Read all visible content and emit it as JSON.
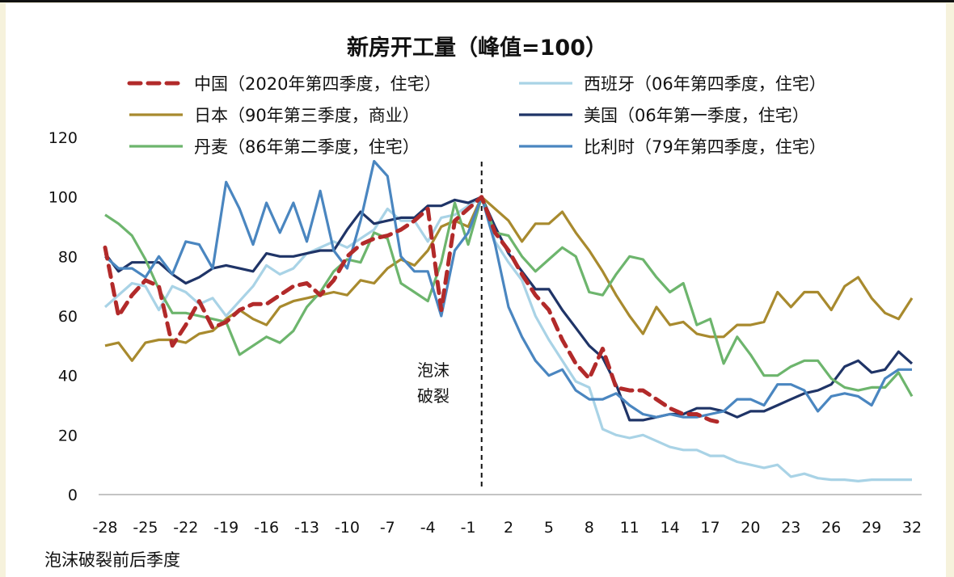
{
  "chart_data": {
    "type": "line",
    "title": "新房开工量（峰值=100）",
    "xlabel": "泡沫破裂前后季度",
    "ylabel": "",
    "xlim": [
      -28,
      32
    ],
    "ylim": [
      0,
      120
    ],
    "yticks": [
      0,
      20,
      40,
      60,
      80,
      100,
      120
    ],
    "xticks": [
      -28,
      -25,
      -22,
      -19,
      -16,
      -13,
      -10,
      -7,
      -4,
      -1,
      2,
      5,
      8,
      11,
      14,
      17,
      20,
      23,
      26,
      29,
      32
    ],
    "grid": false,
    "legend_placement": "top",
    "annotation": {
      "x": 0,
      "lines": [
        "泡沫",
        "破裂"
      ],
      "style": "dashed vertical line"
    },
    "x": [
      -28,
      -27,
      -26,
      -25,
      -24,
      -23,
      -22,
      -21,
      -20,
      -19,
      -18,
      -17,
      -16,
      -15,
      -14,
      -13,
      -12,
      -11,
      -10,
      -9,
      -8,
      -7,
      -6,
      -5,
      -4,
      -3,
      -2,
      -1,
      0,
      1,
      2,
      3,
      4,
      5,
      6,
      7,
      8,
      9,
      10,
      11,
      12,
      13,
      14,
      15,
      16,
      17,
      18,
      19,
      20,
      21,
      22,
      23,
      24,
      25,
      26,
      27,
      28,
      29,
      30,
      31,
      32
    ],
    "series": [
      {
        "name": "中国（2020年第四季度，住宅）",
        "color": "#b22a2a",
        "dash": true,
        "values": [
          83,
          60,
          67,
          72,
          70,
          50,
          57,
          65,
          56,
          58,
          62,
          64,
          64,
          67,
          70,
          71,
          67,
          72,
          80,
          84,
          86,
          87,
          89,
          92,
          96,
          62,
          92,
          96,
          100,
          88,
          82,
          74,
          67,
          62,
          52,
          44,
          39,
          49,
          36,
          35,
          35,
          32,
          29,
          27,
          27,
          25,
          24,
          null,
          null,
          null,
          null,
          null,
          null,
          null,
          null,
          null,
          null,
          null,
          null,
          null,
          null
        ]
      },
      {
        "name": "西班牙（06年第四季度，住宅）",
        "color": "#a9d3e6",
        "dash": false,
        "values": [
          63,
          67,
          71,
          70,
          62,
          70,
          68,
          64,
          66,
          60,
          65,
          70,
          77,
          74,
          76,
          81,
          83,
          85,
          83,
          86,
          89,
          96,
          92,
          92,
          85,
          93,
          94,
          97,
          100,
          85,
          78,
          72,
          60,
          52,
          45,
          38,
          36,
          22,
          20,
          19,
          20,
          18,
          16,
          15,
          15,
          13,
          13,
          11,
          10,
          9,
          10,
          6,
          7,
          5.5,
          5,
          5,
          4.5,
          5,
          5,
          5,
          5
        ]
      },
      {
        "name": "日本（90年第三季度，商业）",
        "color": "#a88a2e",
        "dash": false,
        "values": [
          50,
          51,
          45,
          51,
          52,
          52,
          51,
          54,
          55,
          59,
          62,
          59,
          57,
          63,
          65,
          66,
          67,
          68,
          67,
          72,
          71,
          76,
          79,
          77,
          82,
          90,
          92,
          90,
          100,
          96,
          92,
          85,
          91,
          91,
          95,
          88,
          82,
          75,
          67,
          60,
          54,
          63,
          57,
          58,
          54,
          53,
          53,
          57,
          57,
          58,
          68,
          63,
          68,
          68,
          62,
          70,
          73,
          66,
          61,
          59,
          66
        ]
      },
      {
        "name": "美国（06年第一季度，住宅）",
        "color": "#1f3467",
        "dash": false,
        "values": [
          81,
          75,
          78,
          78,
          78,
          74,
          71,
          73,
          76,
          77,
          76,
          75,
          81,
          80,
          80,
          81,
          82,
          82,
          89,
          95,
          91,
          92,
          93,
          93,
          97,
          97,
          99,
          98,
          100,
          90,
          81,
          75,
          69,
          69,
          62,
          56,
          50,
          46,
          37,
          25,
          25,
          26,
          27,
          27,
          29,
          29,
          28,
          26,
          28,
          28,
          30,
          32,
          34,
          35,
          37,
          43,
          45,
          41,
          42,
          48,
          44
        ]
      },
      {
        "name": "丹麦（86年第二季度，住宅）",
        "color": "#6db56d",
        "dash": false,
        "values": [
          94,
          91,
          87,
          79,
          69,
          61,
          61,
          60,
          59,
          58,
          47,
          50,
          53,
          51,
          55,
          63,
          68,
          75,
          79,
          78,
          88,
          86,
          71,
          68,
          65,
          78,
          98,
          84,
          100,
          88,
          87,
          80,
          75,
          79,
          83,
          80,
          68,
          67,
          74,
          80,
          79,
          73,
          68,
          71,
          57,
          59,
          44,
          53,
          47,
          40,
          40,
          43,
          45,
          45,
          39,
          36,
          35,
          36,
          36,
          41,
          33
        ]
      },
      {
        "name": "比利时（79年第四季度，住宅）",
        "color": "#4a86c0",
        "dash": false,
        "values": [
          80,
          76,
          76,
          73,
          80,
          74,
          85,
          84,
          76,
          105,
          96,
          84,
          98,
          88,
          98,
          85,
          102,
          82,
          76,
          92,
          112,
          107,
          80,
          75,
          75,
          60,
          82,
          88,
          100,
          84,
          63,
          53,
          45,
          40,
          42,
          35,
          32,
          32,
          34,
          30,
          27,
          26,
          27,
          26,
          26,
          27,
          28,
          32,
          32,
          30,
          37,
          37,
          35,
          28,
          33,
          34,
          33,
          30,
          39,
          42,
          42
        ]
      }
    ]
  }
}
